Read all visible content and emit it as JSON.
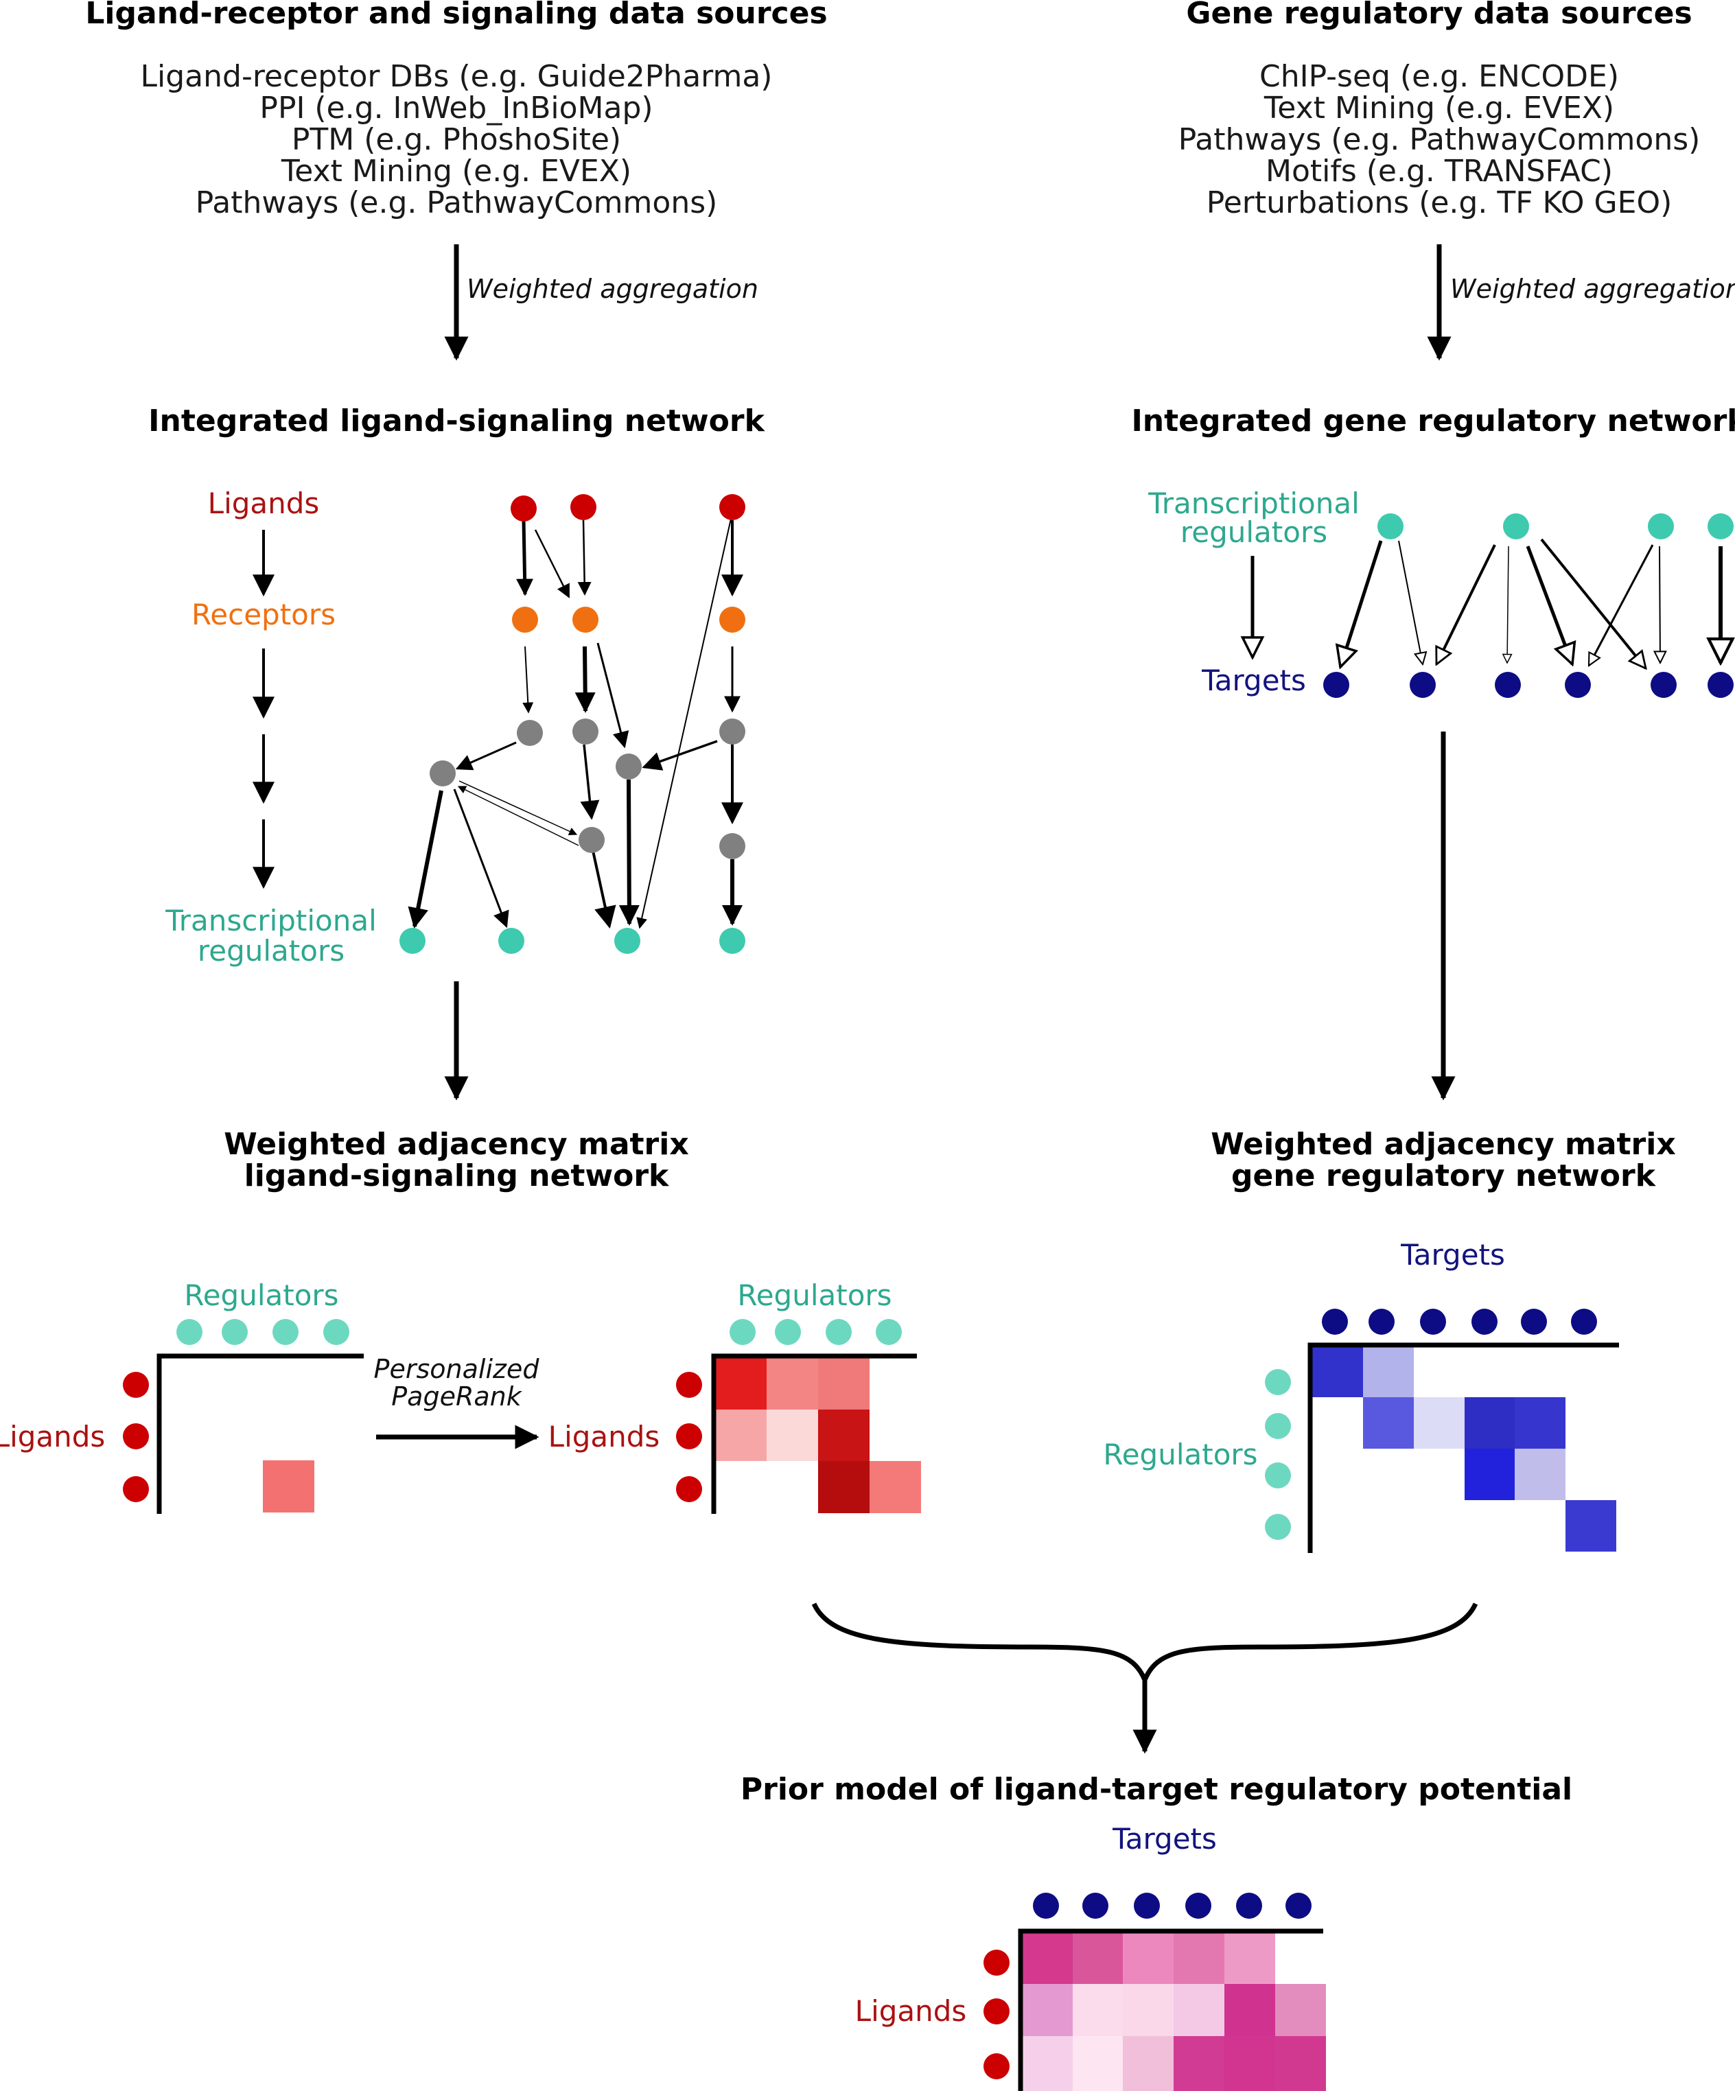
{
  "left": {
    "title": "Ligand-receptor and signaling data sources",
    "sources": [
      "Ligand-receptor DBs (e.g. Guide2Pharma)",
      "PPI (e.g. InWeb_InBioMap)",
      "PTM (e.g. PhoshoSite)",
      "Text Mining (e.g. EVEX)",
      "Pathways (e.g. PathwayCommons)"
    ],
    "aggregation_label": "Weighted aggregation",
    "network_title": "Integrated ligand-signaling network",
    "legend": {
      "ligands": "Ligands",
      "receptors": "Receptors",
      "tr_line1": "Transcriptional",
      "tr_line2": "regulators"
    },
    "matrix_title_line1": "Weighted adjacency matrix",
    "matrix_title_line2": "ligand-signaling network",
    "matrix_cols_label": "Regulators",
    "matrix_rows_label": "Ligands",
    "pagerank_line1": "Personalized",
    "pagerank_line2": "PageRank",
    "matrix_after_cols_label": "Regulators",
    "matrix_after_rows_label": "Ligands"
  },
  "right": {
    "title": "Gene regulatory data sources",
    "sources": [
      "ChIP-seq (e.g. ENCODE)",
      "Text Mining (e.g. EVEX)",
      "Pathways (e.g. PathwayCommons)",
      "Motifs (e.g. TRANSFAC)",
      "Perturbations (e.g. TF KO GEO)"
    ],
    "aggregation_label": "Weighted aggregation",
    "network_title": "Integrated gene regulatory network",
    "legend": {
      "tr_line1": "Transcriptional",
      "tr_line2": "regulators",
      "targets": "Targets"
    },
    "matrix_title_line1": "Weighted adjacency matrix",
    "matrix_title_line2": "gene regulatory network",
    "matrix_cols_label": "Targets",
    "matrix_rows_label": "Regulators"
  },
  "bottom": {
    "title": "Prior model of ligand-target regulatory potential",
    "cols_label": "Targets",
    "rows_label": "Ligands"
  },
  "colors": {
    "ligand": "#cc0000",
    "receptor": "#f07011",
    "signaling": "#808080",
    "regulator": "#3ecaae",
    "regulator_light": "#6dd8c0",
    "target": "#0d0c85",
    "ligand_text": "#aa1111",
    "receptor_text": "#f07011",
    "regulator_text": "#2da88e",
    "target_text": "#13137f"
  }
}
